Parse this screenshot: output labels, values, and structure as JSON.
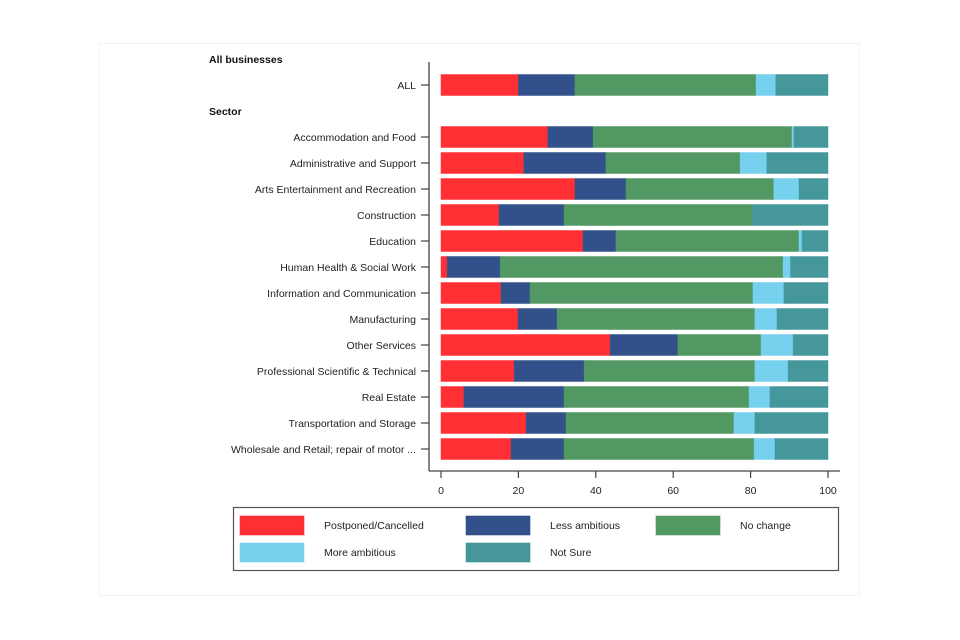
{
  "chart_data": {
    "type": "bar",
    "orientation": "horizontal",
    "stacked": true,
    "title": "",
    "xlabel": "",
    "ylabel": "",
    "xlim": [
      0,
      100
    ],
    "xticks": [
      0,
      20,
      40,
      60,
      80,
      100
    ],
    "grid": false,
    "legend_position": "bottom",
    "groups": [
      {
        "label": "All businesses",
        "categories": [
          "ALL"
        ]
      },
      {
        "label": "Sector",
        "categories": [
          "Accommodation and Food",
          "Administrative and Support",
          "Arts Entertainment and Recreation",
          "Construction",
          "Education",
          "Human Health & Social Work",
          "Information and Communication",
          "Manufacturing",
          "Other Services",
          "Professional Scientific & Technical",
          "Real Estate",
          "Transportation and Storage",
          "Wholesale and Retail; repair of motor ..."
        ]
      }
    ],
    "categories": [
      "ALL",
      "Accommodation and Food",
      "Administrative and Support",
      "Arts Entertainment and Recreation",
      "Construction",
      "Education",
      "Human Health & Social Work",
      "Information and Communication",
      "Manufacturing",
      "Other Services",
      "Professional Scientific & Technical",
      "Real Estate",
      "Transportation and Storage",
      "Wholesale and Retail; repair of motor ..."
    ],
    "series": [
      {
        "name": "Postponed/Cancelled",
        "color": "#ff2f34",
        "values": [
          20.0,
          27.6,
          21.4,
          34.6,
          15.0,
          36.7,
          1.6,
          15.5,
          19.9,
          43.7,
          18.9,
          5.9,
          22.0,
          18.1
        ]
      },
      {
        "name": "Less ambitious",
        "color": "#32518a",
        "values": [
          14.6,
          11.7,
          21.2,
          13.2,
          16.8,
          8.5,
          13.7,
          7.5,
          10.1,
          17.5,
          18.1,
          25.9,
          10.3,
          13.7
        ]
      },
      {
        "name": "No change",
        "color": "#519863",
        "values": [
          46.8,
          51.4,
          34.7,
          38.2,
          48.6,
          47.3,
          73.1,
          57.6,
          51.1,
          21.5,
          44.1,
          47.8,
          43.4,
          49.1
        ]
      },
      {
        "name": "More ambitious",
        "color": "#76d1ef",
        "values": [
          5.1,
          0.5,
          6.9,
          6.5,
          0.0,
          0.8,
          1.9,
          8.0,
          5.7,
          8.3,
          8.6,
          5.4,
          5.4,
          5.4
        ]
      },
      {
        "name": "Not Sure",
        "color": "#45979b",
        "values": [
          13.5,
          8.8,
          15.8,
          7.5,
          19.6,
          6.7,
          9.7,
          11.4,
          13.2,
          9.0,
          10.3,
          15.0,
          18.9,
          13.7
        ]
      }
    ]
  }
}
